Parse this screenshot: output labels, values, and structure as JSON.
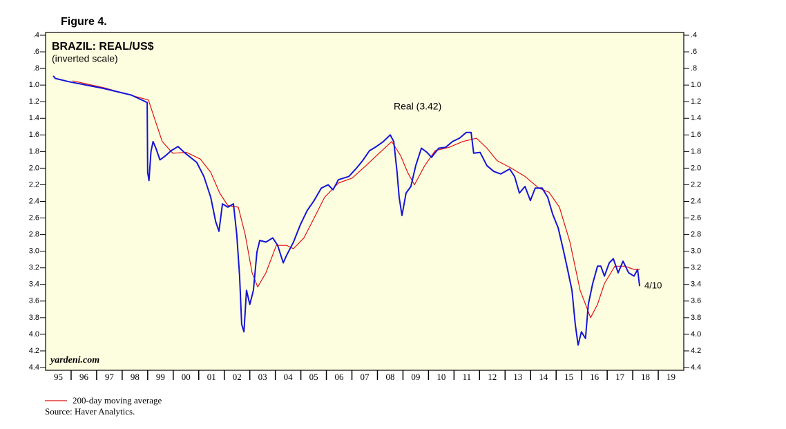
{
  "chart_data": {
    "type": "line",
    "figure_label": "Figure 4.",
    "title": "BRAZIL: REAL/US$",
    "subtitle": "(inverted scale)",
    "series_label": "Real (3.42)",
    "end_label": "4/10",
    "watermark": "yardeni.com",
    "source": "Source: Haver Analytics.",
    "inverted": true,
    "plot_background": "#fdfde0",
    "xlim": [
      1995,
      2020
    ],
    "xticks": [
      1996,
      1997,
      1998,
      1999,
      2000,
      2001,
      2002,
      2003,
      2004,
      2005,
      2006,
      2007,
      2008,
      2009,
      2010,
      2011,
      2012,
      2013,
      2014,
      2015,
      2016,
      2017,
      2018,
      2019
    ],
    "year_labels": [
      {
        "value": 1995.5,
        "label": "95"
      },
      {
        "value": 1996.5,
        "label": "96"
      },
      {
        "value": 1997.5,
        "label": "97"
      },
      {
        "value": 1998.5,
        "label": "98"
      },
      {
        "value": 1999.5,
        "label": "99"
      },
      {
        "value": 2000.5,
        "label": "00"
      },
      {
        "value": 2001.5,
        "label": "01"
      },
      {
        "value": 2002.5,
        "label": "02"
      },
      {
        "value": 2003.5,
        "label": "03"
      },
      {
        "value": 2004.5,
        "label": "04"
      },
      {
        "value": 2005.5,
        "label": "05"
      },
      {
        "value": 2006.5,
        "label": "06"
      },
      {
        "value": 2007.5,
        "label": "07"
      },
      {
        "value": 2008.5,
        "label": "08"
      },
      {
        "value": 2009.5,
        "label": "09"
      },
      {
        "value": 2010.5,
        "label": "10"
      },
      {
        "value": 2011.5,
        "label": "11"
      },
      {
        "value": 2012.5,
        "label": "12"
      },
      {
        "value": 2013.5,
        "label": "13"
      },
      {
        "value": 2014.5,
        "label": "14"
      },
      {
        "value": 2015.5,
        "label": "15"
      },
      {
        "value": 2016.5,
        "label": "16"
      },
      {
        "value": 2017.5,
        "label": "17"
      },
      {
        "value": 2018.5,
        "label": "18"
      },
      {
        "value": 2019.5,
        "label": "19"
      }
    ],
    "ylim": [
      0.4,
      4.4
    ],
    "yticks": [
      {
        "value": 0.4,
        "label": ".4"
      },
      {
        "value": 0.6,
        "label": ".6"
      },
      {
        "value": 0.8,
        "label": ".8"
      },
      {
        "value": 1.0,
        "label": "1.0"
      },
      1.2,
      1.4,
      1.6,
      1.8,
      {
        "value": 2,
        "label": "2.0"
      },
      2.2,
      2.4,
      2.6,
      2.8,
      {
        "value": 3,
        "label": "3.0"
      },
      3.2,
      3.4,
      3.6,
      3.8,
      {
        "value": 4,
        "label": "4.0"
      },
      4.2,
      4.4
    ],
    "series": [
      {
        "color": "#1414d8",
        "x": [
          1995.3,
          1995.38,
          1995.92,
          1997.27,
          1998.36,
          1998.98,
          1999.0,
          1999.05,
          1999.13,
          1999.21,
          1999.32,
          1999.48,
          1999.7,
          1999.92,
          2000.19,
          2000.47,
          2000.92,
          2001.2,
          2001.47,
          2001.66,
          2001.79,
          2001.93,
          2002.14,
          2002.36,
          2002.49,
          2002.6,
          2002.68,
          2002.77,
          2002.87,
          2003.0,
          2003.14,
          2003.28,
          2003.39,
          2003.63,
          2003.9,
          2004.09,
          2004.31,
          2004.44,
          2004.71,
          2004.98,
          2005.25,
          2005.52,
          2005.8,
          2006.07,
          2006.26,
          2006.47,
          2006.88,
          2007.15,
          2007.42,
          2007.69,
          2007.96,
          2008.23,
          2008.5,
          2008.64,
          2008.77,
          2008.85,
          2008.96,
          2009.12,
          2009.31,
          2009.5,
          2009.72,
          2009.94,
          2010.12,
          2010.4,
          2010.67,
          2010.94,
          2011.21,
          2011.48,
          2011.67,
          2011.77,
          2012.02,
          2012.29,
          2012.56,
          2012.83,
          2013.18,
          2013.37,
          2013.56,
          2013.78,
          2013.99,
          2014.18,
          2014.45,
          2014.67,
          2014.86,
          2015.08,
          2015.27,
          2015.45,
          2015.62,
          2015.75,
          2015.86,
          2015.99,
          2016.15,
          2016.26,
          2016.43,
          2016.62,
          2016.75,
          2016.89,
          2017.08,
          2017.24,
          2017.43,
          2017.62,
          2017.84,
          2018.05,
          2018.19,
          2018.27
        ],
        "values": [
          0.89,
          0.92,
          0.96,
          1.04,
          1.12,
          1.21,
          2.05,
          2.15,
          1.8,
          1.68,
          1.76,
          1.9,
          1.85,
          1.79,
          1.74,
          1.82,
          1.93,
          2.1,
          2.35,
          2.64,
          2.76,
          2.43,
          2.47,
          2.43,
          2.8,
          3.3,
          3.88,
          3.97,
          3.47,
          3.64,
          3.47,
          3.01,
          2.87,
          2.89,
          2.84,
          2.93,
          3.14,
          3.05,
          2.89,
          2.68,
          2.51,
          2.39,
          2.24,
          2.2,
          2.26,
          2.14,
          2.1,
          2.01,
          1.91,
          1.79,
          1.74,
          1.68,
          1.6,
          1.68,
          2.05,
          2.35,
          2.57,
          2.3,
          2.22,
          1.97,
          1.76,
          1.81,
          1.87,
          1.76,
          1.75,
          1.68,
          1.64,
          1.57,
          1.57,
          1.82,
          1.81,
          1.97,
          2.04,
          2.07,
          2.01,
          2.1,
          2.3,
          2.22,
          2.39,
          2.24,
          2.24,
          2.35,
          2.55,
          2.72,
          2.97,
          3.22,
          3.47,
          3.88,
          4.13,
          3.97,
          4.05,
          3.64,
          3.39,
          3.18,
          3.18,
          3.3,
          3.14,
          3.09,
          3.26,
          3.12,
          3.26,
          3.3,
          3.22,
          3.42
        ]
      },
      {
        "name": "200-day moving average",
        "color": "#e01010",
        "x": [
          1996.06,
          1997.27,
          1999.03,
          1999.3,
          1999.57,
          1999.98,
          2000.52,
          2001.06,
          2001.47,
          2001.82,
          2002.14,
          2002.55,
          2002.82,
          2003.09,
          2003.31,
          2003.63,
          2004.04,
          2004.44,
          2004.71,
          2005.12,
          2005.52,
          2005.93,
          2006.47,
          2007.01,
          2007.55,
          2008.1,
          2008.56,
          2008.91,
          2009.18,
          2009.45,
          2009.85,
          2010.26,
          2010.8,
          2011.34,
          2011.88,
          2012.29,
          2012.69,
          2013.24,
          2013.78,
          2014.32,
          2014.72,
          2015.13,
          2015.54,
          2015.94,
          2016.35,
          2016.62,
          2016.89,
          2017.3,
          2017.7,
          2018.05,
          2018.27
        ],
        "values": [
          0.95,
          1.03,
          1.18,
          1.43,
          1.68,
          1.82,
          1.81,
          1.89,
          2.05,
          2.3,
          2.45,
          2.47,
          2.8,
          3.26,
          3.43,
          3.26,
          2.93,
          2.93,
          2.97,
          2.84,
          2.6,
          2.35,
          2.18,
          2.12,
          1.97,
          1.81,
          1.68,
          1.85,
          2.05,
          2.2,
          1.97,
          1.79,
          1.75,
          1.68,
          1.64,
          1.76,
          1.91,
          2.0,
          2.1,
          2.24,
          2.29,
          2.47,
          2.89,
          3.47,
          3.8,
          3.64,
          3.39,
          3.18,
          3.18,
          3.22,
          3.22
        ]
      }
    ]
  }
}
